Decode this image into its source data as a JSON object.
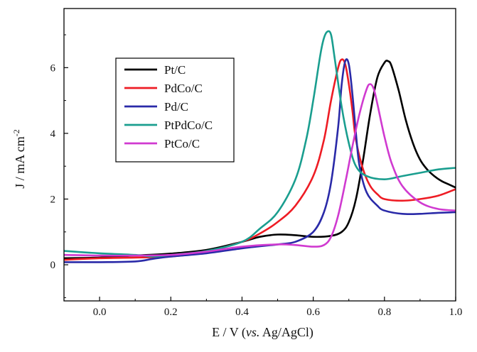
{
  "chart_data": {
    "type": "line",
    "title": "",
    "xlabel": "E / V (vs. Ag/AgCl)",
    "xlabel_prefix": "E / V (",
    "xlabel_italic": "vs.",
    "xlabel_suffix": " Ag/AgCl)",
    "ylabel": "J / mA cm-2",
    "ylabel_main": "J / mA cm",
    "ylabel_sup": "-2",
    "xlim": [
      -0.1,
      1.0
    ],
    "ylim": [
      -1.1,
      7.8
    ],
    "xticks": [
      0.0,
      0.2,
      0.4,
      0.6,
      0.8,
      1.0
    ],
    "xtick_labels": [
      "0.0",
      "0.2",
      "0.4",
      "0.6",
      "0.8",
      "1.0"
    ],
    "yticks": [
      0,
      2,
      4,
      6
    ],
    "ytick_labels": [
      "0",
      "2",
      "4",
      "6"
    ],
    "legend_position": "upper-left",
    "series": [
      {
        "name": "Pt/C",
        "color": "#000000",
        "x": [
          -0.1,
          0.0,
          0.1,
          0.2,
          0.3,
          0.4,
          0.45,
          0.5,
          0.55,
          0.6,
          0.65,
          0.68,
          0.7,
          0.72,
          0.74,
          0.76,
          0.78,
          0.8,
          0.81,
          0.82,
          0.84,
          0.86,
          0.88,
          0.9,
          0.92,
          0.94,
          0.96,
          0.98,
          1.0
        ],
        "values": [
          0.2,
          0.22,
          0.28,
          0.34,
          0.45,
          0.7,
          0.85,
          0.92,
          0.9,
          0.85,
          0.88,
          1.0,
          1.3,
          2.0,
          3.2,
          4.6,
          5.7,
          6.15,
          6.2,
          6.05,
          5.3,
          4.4,
          3.7,
          3.2,
          2.9,
          2.7,
          2.55,
          2.45,
          2.35
        ]
      },
      {
        "name": "PdCo/C",
        "color": "#ee1c24",
        "x": [
          -0.1,
          0.0,
          0.1,
          0.2,
          0.3,
          0.4,
          0.45,
          0.5,
          0.55,
          0.6,
          0.63,
          0.65,
          0.67,
          0.68,
          0.69,
          0.7,
          0.71,
          0.72,
          0.74,
          0.76,
          0.78,
          0.8,
          0.85,
          0.9,
          0.95,
          1.0
        ],
        "values": [
          0.15,
          0.2,
          0.22,
          0.25,
          0.4,
          0.7,
          0.95,
          1.3,
          1.8,
          2.7,
          3.8,
          5.0,
          6.0,
          6.25,
          6.1,
          5.5,
          4.7,
          3.8,
          2.9,
          2.4,
          2.15,
          2.0,
          1.95,
          2.0,
          2.1,
          2.3
        ]
      },
      {
        "name": "Pd/C",
        "color": "#2a2aa8",
        "x": [
          -0.1,
          0.0,
          0.1,
          0.15,
          0.2,
          0.3,
          0.4,
          0.5,
          0.55,
          0.6,
          0.63,
          0.65,
          0.67,
          0.68,
          0.69,
          0.7,
          0.71,
          0.72,
          0.73,
          0.75,
          0.78,
          0.8,
          0.85,
          0.9,
          0.95,
          1.0
        ],
        "values": [
          0.08,
          0.08,
          0.1,
          0.18,
          0.25,
          0.35,
          0.5,
          0.62,
          0.7,
          1.0,
          1.6,
          2.5,
          4.2,
          5.5,
          6.2,
          6.1,
          5.2,
          4.0,
          3.0,
          2.2,
          1.8,
          1.65,
          1.55,
          1.55,
          1.58,
          1.6
        ]
      },
      {
        "name": "PtPdCo/C",
        "color": "#1a9e8f",
        "x": [
          -0.1,
          0.0,
          0.1,
          0.15,
          0.2,
          0.3,
          0.4,
          0.45,
          0.5,
          0.55,
          0.58,
          0.6,
          0.62,
          0.63,
          0.64,
          0.65,
          0.66,
          0.68,
          0.7,
          0.72,
          0.75,
          0.8,
          0.85,
          0.9,
          0.95,
          1.0
        ],
        "values": [
          0.42,
          0.35,
          0.3,
          0.25,
          0.3,
          0.42,
          0.7,
          1.1,
          1.6,
          2.6,
          3.8,
          5.0,
          6.4,
          6.9,
          7.1,
          7.0,
          6.3,
          4.8,
          3.7,
          3.0,
          2.7,
          2.6,
          2.7,
          2.8,
          2.9,
          2.95
        ]
      },
      {
        "name": "PtCo/C",
        "color": "#d03ad0",
        "x": [
          -0.1,
          0.0,
          0.1,
          0.2,
          0.3,
          0.4,
          0.5,
          0.55,
          0.6,
          0.63,
          0.65,
          0.67,
          0.69,
          0.71,
          0.73,
          0.75,
          0.76,
          0.77,
          0.78,
          0.8,
          0.82,
          0.85,
          0.9,
          0.95,
          1.0
        ],
        "values": [
          0.3,
          0.28,
          0.28,
          0.3,
          0.4,
          0.55,
          0.62,
          0.6,
          0.55,
          0.6,
          0.85,
          1.5,
          2.5,
          3.6,
          4.6,
          5.35,
          5.5,
          5.35,
          4.9,
          3.9,
          3.1,
          2.4,
          1.9,
          1.7,
          1.65
        ]
      }
    ]
  }
}
